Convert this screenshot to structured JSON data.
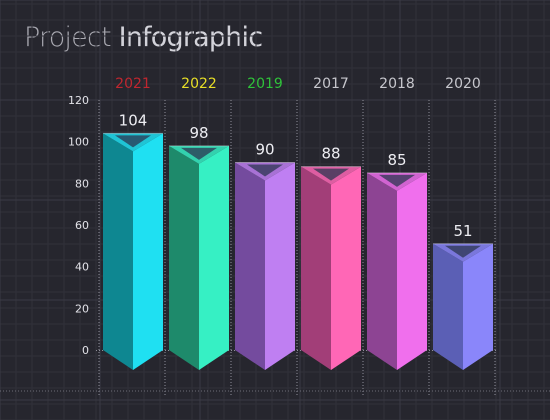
{
  "title": {
    "part1": "Project",
    "part2": "Infographic"
  },
  "chart_data": {
    "type": "bar",
    "title": "Project Infographic",
    "categories": [
      "2021",
      "2022",
      "2019",
      "2017",
      "2018",
      "2020"
    ],
    "values": [
      104,
      98,
      90,
      88,
      85,
      51
    ],
    "category_label_colors": [
      "#c0262f",
      "#e8df27",
      "#2fc23a",
      "#c7c7cd",
      "#c7c7cd",
      "#c7c7cd"
    ],
    "bar_colors": [
      {
        "light": "#1fe0f2",
        "dark": "#0e8791"
      },
      {
        "light": "#36f0c4",
        "dark": "#1e8a6b"
      },
      {
        "light": "#bf7ff2",
        "dark": "#744b9e"
      },
      {
        "light": "#ff67b6",
        "dark": "#a23e78"
      },
      {
        "light": "#f06fed",
        "dark": "#8d4493"
      },
      {
        "light": "#8a86fa",
        "dark": "#5b5fb5"
      }
    ],
    "y_ticks": [
      0,
      20,
      40,
      60,
      80,
      100,
      120
    ],
    "ylim": [
      0,
      120
    ],
    "xlabel": "",
    "ylabel": "",
    "data_labels": true,
    "grid": true,
    "legend": "none"
  }
}
